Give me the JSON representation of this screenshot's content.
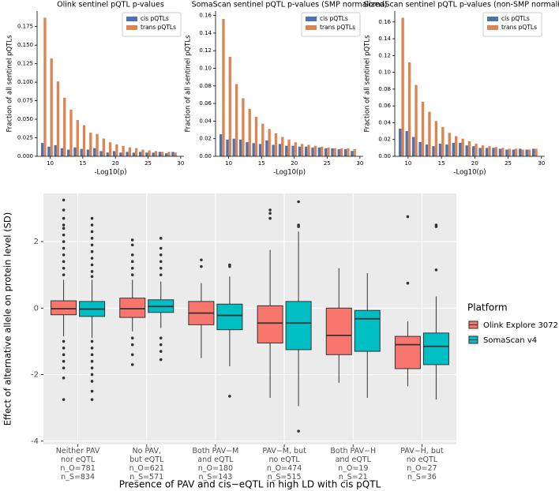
{
  "chart_data": [
    {
      "type": "bar",
      "title": "Olink sentinel pQTL p-values",
      "x_label": "-Log10(p)",
      "y_label": "Fraction of all sentinel pQTLs",
      "x": [
        9,
        10,
        11,
        12,
        13,
        14,
        15,
        16,
        17,
        18,
        19,
        20,
        21,
        22,
        23,
        24,
        25,
        26,
        27,
        28,
        29
      ],
      "series": [
        {
          "name": "cis pQTLs",
          "color": "#4c72b0",
          "values": [
            0.018,
            0.013,
            0.015,
            0.011,
            0.009,
            0.012,
            0.01,
            0.009,
            0.011,
            0.007,
            0.005,
            0.007,
            0.005,
            0.006,
            0.005,
            0.006,
            0.005,
            0.005,
            0.006,
            0.004,
            0.006
          ]
        },
        {
          "name": "trans pQTLs",
          "color": "#dd8452",
          "values": [
            0.187,
            0.132,
            0.101,
            0.079,
            0.063,
            0.049,
            0.042,
            0.032,
            0.03,
            0.024,
            0.019,
            0.016,
            0.014,
            0.012,
            0.011,
            0.009,
            0.008,
            0.007,
            0.006,
            0.006,
            0.005
          ]
        }
      ],
      "xlim": [
        8,
        30.5
      ],
      "xticks": [
        10,
        15,
        20,
        25,
        30
      ],
      "ylim": [
        0,
        0.196
      ],
      "yticks": [
        {
          "value": 0,
          "label": "0.000"
        },
        {
          "value": 0.025,
          "label": "0.025"
        },
        {
          "value": 0.05,
          "label": "0.050"
        },
        {
          "value": 0.075,
          "label": "0.075"
        },
        {
          "value": 0.1,
          "label": "0.100"
        },
        {
          "value": 0.125,
          "label": "0.125"
        },
        {
          "value": 0.15,
          "label": "0.150"
        },
        {
          "value": 0.175,
          "label": "0.175"
        }
      ],
      "legend": "upper right"
    },
    {
      "type": "bar",
      "title": "SomaScan sentinel pQTL p-values (SMP normalized)",
      "x_label": "-Log10(p)",
      "y_label": "Fraction of all sentinel pQTLs",
      "x": [
        9,
        10,
        11,
        12,
        13,
        14,
        15,
        16,
        17,
        18,
        19,
        20,
        21,
        22,
        23,
        24,
        25,
        26,
        27,
        28,
        29
      ],
      "series": [
        {
          "name": "cis pQTLs",
          "color": "#4c72b0",
          "values": [
            0.025,
            0.019,
            0.02,
            0.019,
            0.016,
            0.015,
            0.014,
            0.018,
            0.013,
            0.014,
            0.012,
            0.012,
            0.011,
            0.011,
            0.01,
            0.01,
            0.009,
            0.009,
            0.008,
            0.008,
            0.006
          ]
        },
        {
          "name": "trans pQTLs",
          "color": "#dd8452",
          "values": [
            0.156,
            0.113,
            0.082,
            0.066,
            0.054,
            0.045,
            0.037,
            0.031,
            0.026,
            0.022,
            0.019,
            0.016,
            0.014,
            0.013,
            0.012,
            0.011,
            0.01,
            0.009,
            0.009,
            0.009,
            0.008
          ]
        }
      ],
      "xlim": [
        8,
        30.5
      ],
      "xticks": [
        10,
        15,
        20,
        25,
        30
      ],
      "ylim": [
        0,
        0.165
      ],
      "yticks": [
        {
          "value": 0,
          "label": "0.00"
        },
        {
          "value": 0.02,
          "label": "0.02"
        },
        {
          "value": 0.04,
          "label": "0.04"
        },
        {
          "value": 0.06,
          "label": "0.06"
        },
        {
          "value": 0.08,
          "label": "0.08"
        },
        {
          "value": 0.1,
          "label": "0.10"
        },
        {
          "value": 0.12,
          "label": "0.12"
        },
        {
          "value": 0.14,
          "label": "0.14"
        },
        {
          "value": 0.16,
          "label": "0.16"
        }
      ],
      "legend": "upper right"
    },
    {
      "type": "bar",
      "title": "SomaScan sentinel pQTL p-values (non-SMP normalized)",
      "x_label": "-Log10(p)",
      "y_label": "Fraction of all sentinel pQTLs",
      "x": [
        9,
        10,
        11,
        12,
        13,
        14,
        15,
        16,
        17,
        18,
        19,
        20,
        21,
        22,
        23,
        24,
        25,
        26,
        27,
        28,
        29
      ],
      "series": [
        {
          "name": "cis pQTLs",
          "color": "#4c72b0",
          "values": [
            0.033,
            0.03,
            0.023,
            0.017,
            0.014,
            0.012,
            0.015,
            0.014,
            0.016,
            0.016,
            0.013,
            0.012,
            0.01,
            0.01,
            0.01,
            0.009,
            0.008,
            0.008,
            0.009,
            0.008,
            0.009
          ]
        },
        {
          "name": "trans pQTLs",
          "color": "#dd8452",
          "values": [
            0.165,
            0.112,
            0.085,
            0.065,
            0.053,
            0.042,
            0.035,
            0.028,
            0.024,
            0.021,
            0.018,
            0.015,
            0.013,
            0.012,
            0.011,
            0.01,
            0.009,
            0.009,
            0.008,
            0.008,
            0.009
          ]
        }
      ],
      "xlim": [
        8,
        30.5
      ],
      "xticks": [
        10,
        15,
        20,
        25,
        30
      ],
      "ylim": [
        0,
        0.173
      ],
      "yticks": [
        {
          "value": 0,
          "label": "0.00"
        },
        {
          "value": 0.02,
          "label": "0.02"
        },
        {
          "value": 0.04,
          "label": "0.04"
        },
        {
          "value": 0.06,
          "label": "0.06"
        },
        {
          "value": 0.08,
          "label": "0.08"
        },
        {
          "value": 0.1,
          "label": "0.10"
        },
        {
          "value": 0.12,
          "label": "0.12"
        },
        {
          "value": 0.14,
          "label": "0.14"
        },
        {
          "value": 0.16,
          "label": "0.16"
        }
      ],
      "legend": "upper right"
    },
    {
      "type": "box",
      "x_label": "Presence of PAV and cis−eQTL in high LD with cis pQTL",
      "y_label": "Effect of alternative allele on protein level (SD)",
      "categories": [
        "Neither PAV\nnor eQTL\nn_O=781\nn_S=834",
        "No PAV,\nbut eQTL\nn_O=621\nn_S=571",
        "Both PAV−M\nand eQTL\nn_O=180\nn_S=143",
        "PAV−M, but\nno eQTL\nn_O=474\nn_S=515",
        "Both PAV−H\nand eQTL\nn_O=19\nn_S=21",
        "PAV−H, but\nno eQTL\nn_O=27\nn_S=36"
      ],
      "legend_title": "Platform",
      "series": [
        {
          "name": "Olink Explore 3072",
          "color": "#f8766d",
          "whisker_low": [
            -0.85,
            -0.7,
            -1.5,
            -2.7,
            -2.25,
            -2.35
          ],
          "q1": [
            -0.2,
            -0.28,
            -0.5,
            -1.05,
            -1.4,
            -1.82
          ],
          "median": [
            -0.02,
            -0.02,
            -0.15,
            -0.45,
            -0.82,
            -1.1
          ],
          "q3": [
            0.22,
            0.3,
            0.2,
            0.07,
            0.0,
            -0.85
          ],
          "whisker_high": [
            0.85,
            0.85,
            0.75,
            1.75,
            1.2,
            -0.4
          ],
          "outliers": [
            [
              3.25,
              2.95,
              2.7,
              2.5,
              2.4,
              2.2,
              2.0,
              1.8,
              1.6,
              1.4,
              1.2,
              1.0,
              -1.0,
              -1.2,
              -1.4,
              -1.6,
              -1.8,
              -2.1,
              -2.75
            ],
            [
              2.05,
              1.9,
              1.6,
              1.4,
              1.2,
              1.0,
              -0.9,
              -1.1,
              -1.4,
              -1.7
            ],
            [
              1.45,
              1.25
            ],
            [
              2.95,
              2.85,
              2.7
            ],
            [],
            [
              2.75,
              0.75
            ]
          ]
        },
        {
          "name": "SomaScan v4",
          "color": "#00bfc4",
          "whisker_low": [
            -0.9,
            -0.6,
            -1.75,
            -2.95,
            -2.7,
            -2.75
          ],
          "q1": [
            -0.25,
            -0.13,
            -0.65,
            -1.25,
            -1.3,
            -1.7
          ],
          "median": [
            -0.03,
            0.05,
            -0.22,
            -0.45,
            -0.32,
            -1.15
          ],
          "q3": [
            0.2,
            0.25,
            0.12,
            0.2,
            -0.07,
            -0.75
          ],
          "whisker_high": [
            0.85,
            0.8,
            0.95,
            2.3,
            1.05,
            0.35
          ],
          "outliers": [
            [
              2.7,
              2.5,
              2.3,
              2.1,
              1.9,
              1.7,
              1.5,
              1.3,
              1.1,
              0.95,
              -1.0,
              -1.2,
              -1.4,
              -1.6,
              -1.8,
              -2.0,
              -2.2,
              -2.5,
              -2.75
            ],
            [
              2.1,
              1.8,
              1.6,
              1.4,
              1.2,
              1.0,
              -0.9,
              -1.1,
              -1.3,
              -1.55
            ],
            [
              1.3,
              1.25,
              -2.65
            ],
            [
              3.2,
              2.5,
              2.45,
              -3.7
            ],
            [],
            [
              2.5,
              2.45,
              1.15
            ]
          ]
        }
      ],
      "ylim": [
        -4.1,
        3.45
      ],
      "yticks": [
        -4,
        -2,
        0,
        2
      ],
      "grid": true,
      "legend": "right"
    }
  ]
}
